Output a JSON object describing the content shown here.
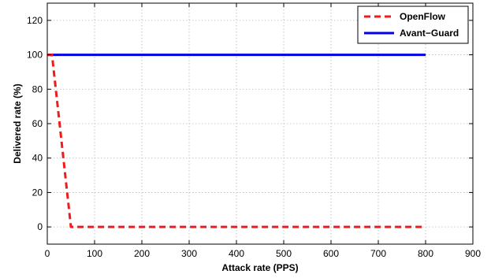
{
  "chart_data": {
    "type": "line",
    "title": "",
    "xlabel": "Attack rate (PPS)",
    "ylabel": "Delivered rate (%)",
    "xlim": [
      0,
      900
    ],
    "ylim": [
      -10,
      130
    ],
    "x_ticks": [
      0,
      100,
      200,
      300,
      400,
      500,
      600,
      700,
      800,
      900
    ],
    "y_ticks": [
      0,
      20,
      40,
      60,
      80,
      100,
      120
    ],
    "grid": true,
    "legend_position": "top-right",
    "series": [
      {
        "name": "OpenFlow",
        "color": "#ee1c1c",
        "line_style": "dashed",
        "x": [
          0,
          10,
          50,
          800
        ],
        "y": [
          100,
          100,
          0,
          0
        ]
      },
      {
        "name": "Avant−Guard",
        "color": "#0000ee",
        "line_style": "solid",
        "x": [
          0,
          800
        ],
        "y": [
          100,
          100
        ]
      }
    ]
  }
}
